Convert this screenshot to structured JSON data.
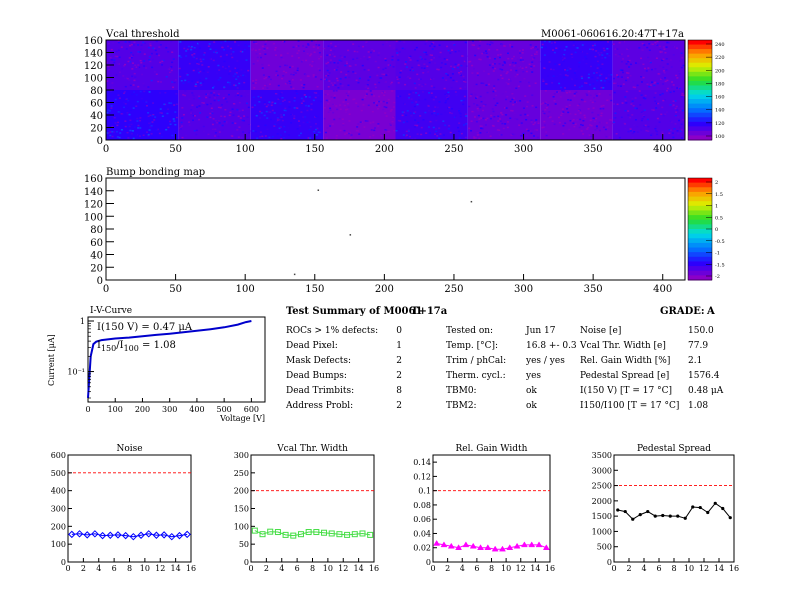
{
  "header": {
    "module_id": "M0061-060616.20:47T+17a"
  },
  "vcal_map": {
    "title": "Vcal threshold",
    "xticks": [
      "0",
      "50",
      "100",
      "150",
      "200",
      "250",
      "300",
      "350",
      "400"
    ],
    "yticks": [
      "0",
      "20",
      "40",
      "60",
      "80",
      "100",
      "120",
      "140",
      "160"
    ],
    "palette_labels": [
      "240",
      "220",
      "200",
      "180",
      "160",
      "140",
      "120",
      "100"
    ]
  },
  "bump_map": {
    "title": "Bump bonding map",
    "xticks": [
      "0",
      "50",
      "100",
      "150",
      "200",
      "250",
      "300",
      "350",
      "400"
    ],
    "yticks": [
      "0",
      "20",
      "40",
      "60",
      "80",
      "100",
      "120",
      "140",
      "160"
    ],
    "palette_labels": [
      "2",
      "1.5",
      "1",
      "0.5",
      "0",
      "-0.5",
      "-1",
      "-1.5",
      "-2"
    ]
  },
  "iv": {
    "title": "I-V-Curve",
    "ylabel": "Current [μA]",
    "xlabel": "Voltage [V]",
    "annot1": "I(150 V) = 0.47 μA",
    "annot2_main": "I",
    "annot2_sub1": "150",
    "annot2_mid": "/I",
    "annot2_sub2": "100",
    "annot2_tail": " = 1.08",
    "yticks": [
      "1",
      "10⁻¹"
    ],
    "xticks": [
      "0",
      "100",
      "200",
      "300",
      "400",
      "500",
      "600"
    ]
  },
  "summary": {
    "title": "Test Summary of M0061",
    "tag": "T+17a",
    "grade_label": "GRADE:",
    "grade": "A",
    "col1": [
      {
        "label": "ROCs > 1% defects:",
        "value": "0"
      },
      {
        "label": "Dead Pixel:",
        "value": "1"
      },
      {
        "label": "Mask Defects:",
        "value": "2"
      },
      {
        "label": "Dead Bumps:",
        "value": "2"
      },
      {
        "label": "Dead Trimbits:",
        "value": "8"
      },
      {
        "label": "Address Probl:",
        "value": "2"
      }
    ],
    "col2": [
      {
        "label": "Tested on:",
        "value": "Jun 17"
      },
      {
        "label": "Temp. [°C]:",
        "value": "16.8 +- 0.3"
      },
      {
        "label": "Trim / phCal:",
        "value": "yes / yes"
      },
      {
        "label": "Therm. cycl.:",
        "value": "yes"
      },
      {
        "label": "TBM0:",
        "value": "ok"
      },
      {
        "label": "TBM2:",
        "value": "ok"
      }
    ],
    "col3": [
      {
        "label": "Noise [e]",
        "value": "150.0"
      },
      {
        "label": "Vcal Thr. Width [e]",
        "value": "77.9"
      },
      {
        "label": "Rel. Gain Width [%]",
        "value": "2.1"
      },
      {
        "label": "Pedestal Spread [e]",
        "value": "1576.4"
      },
      {
        "label": "I(150 V) [T = 17 °C]",
        "value": "0.48 μA"
      },
      {
        "label": "I150/I100  [T = 17 °C]",
        "value": "1.08"
      }
    ]
  },
  "chart_data": [
    {
      "type": "heatmap",
      "title": "Vcal threshold",
      "xlim": [
        0,
        416
      ],
      "ylim": [
        0,
        160
      ],
      "zlim": [
        100,
        240
      ],
      "roc_means_top": [
        112,
        118,
        106,
        110,
        112,
        108,
        118,
        110
      ],
      "roc_means_bottom": [
        120,
        112,
        118,
        104,
        116,
        108,
        106,
        112
      ]
    },
    {
      "type": "heatmap",
      "title": "Bump bonding map",
      "xlim": [
        0,
        416
      ],
      "ylim": [
        0,
        160
      ],
      "zlim": [
        -2,
        2
      ],
      "points": [
        [
          152,
          142
        ],
        [
          262,
          124
        ],
        [
          175,
          72
        ],
        [
          135,
          10
        ]
      ]
    },
    {
      "type": "line",
      "title": "I-V-Curve",
      "xlabel": "Voltage [V]",
      "ylabel": "Current [μA]",
      "yscale": "log",
      "xlim": [
        0,
        650
      ],
      "ylim": [
        0.025,
        1.2
      ],
      "x": [
        0,
        5,
        10,
        20,
        30,
        50,
        100,
        150,
        200,
        250,
        300,
        350,
        400,
        450,
        500,
        550,
        580,
        600
      ],
      "y": [
        0.03,
        0.08,
        0.2,
        0.35,
        0.39,
        0.42,
        0.45,
        0.47,
        0.5,
        0.53,
        0.56,
        0.6,
        0.64,
        0.69,
        0.75,
        0.85,
        0.95,
        1.0
      ]
    },
    {
      "type": "line",
      "title": "Noise",
      "xlim": [
        0,
        16
      ],
      "ylim": [
        0,
        600
      ],
      "limit": 500,
      "color": "#0000ff",
      "x": [
        0,
        1,
        2,
        3,
        4,
        5,
        6,
        7,
        8,
        9,
        10,
        11,
        12,
        13,
        14,
        15
      ],
      "y": [
        155,
        158,
        152,
        158,
        148,
        150,
        152,
        148,
        142,
        150,
        158,
        150,
        152,
        142,
        148,
        155
      ]
    },
    {
      "type": "line",
      "title": "Vcal Thr. Width",
      "xlim": [
        0,
        16
      ],
      "ylim": [
        0,
        300
      ],
      "limit": 200,
      "color": "#44dd44",
      "x": [
        0,
        1,
        2,
        3,
        4,
        5,
        6,
        7,
        8,
        9,
        10,
        11,
        12,
        13,
        14,
        15
      ],
      "y": [
        88,
        78,
        85,
        84,
        76,
        74,
        78,
        84,
        84,
        82,
        80,
        78,
        76,
        78,
        80,
        76
      ]
    },
    {
      "type": "line",
      "title": "Rel. Gain Width",
      "xlim": [
        0,
        16
      ],
      "ylim": [
        0,
        0.15
      ],
      "limit": 0.1,
      "color": "#ff00ff",
      "x": [
        0,
        1,
        2,
        3,
        4,
        5,
        6,
        7,
        8,
        9,
        10,
        11,
        12,
        13,
        14,
        15
      ],
      "y": [
        0.026,
        0.024,
        0.022,
        0.02,
        0.024,
        0.022,
        0.02,
        0.02,
        0.018,
        0.018,
        0.02,
        0.022,
        0.024,
        0.024,
        0.024,
        0.02
      ]
    },
    {
      "type": "line",
      "title": "Pedestal Spread",
      "xlim": [
        0,
        16
      ],
      "ylim": [
        0,
        3500
      ],
      "limit": 2500,
      "color": "#000000",
      "x": [
        0,
        1,
        2,
        3,
        4,
        5,
        6,
        7,
        8,
        9,
        10,
        11,
        12,
        13,
        14,
        15
      ],
      "y": [
        1700,
        1650,
        1400,
        1550,
        1650,
        1500,
        1520,
        1500,
        1500,
        1430,
        1800,
        1780,
        1620,
        1920,
        1750,
        1450
      ]
    }
  ]
}
